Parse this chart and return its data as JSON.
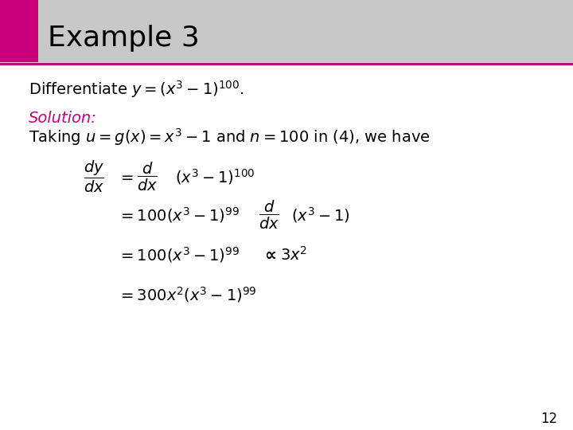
{
  "title": "Example 3",
  "title_bg_color": "#c8c8c8",
  "title_accent_color": "#cc007a",
  "title_font_size": 26,
  "background_color": "#ffffff",
  "text_color": "#000000",
  "solution_color": "#cc007a",
  "slide_number": "12",
  "accent_square_color": "#cc007a",
  "accent_line_color": "#cc007a",
  "body_fontsize": 14,
  "math_fontsize": 14
}
